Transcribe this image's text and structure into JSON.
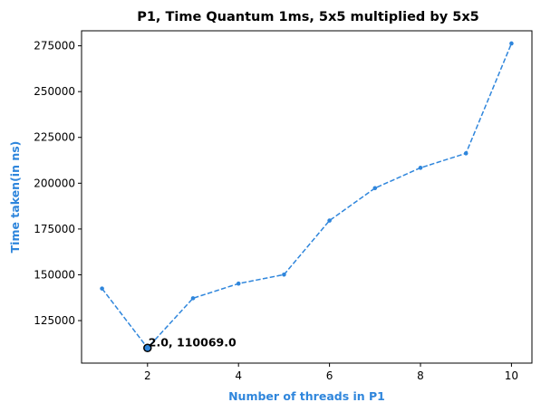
{
  "chart_data": {
    "type": "line",
    "title": "P1, Time Quantum 1ms, 5x5 multiplied by 5x5",
    "xlabel": "Number of threads in P1",
    "ylabel": "Time taken(in ns)",
    "x": [
      1,
      2,
      3,
      4,
      5,
      6,
      7,
      8,
      9,
      10
    ],
    "series": [
      {
        "values": [
          142500,
          110069,
          137200,
          145200,
          150100,
          179600,
          197300,
          208400,
          216300,
          276300
        ]
      }
    ],
    "xlim": [
      0.55,
      10.45
    ],
    "ylim": [
      101800,
      283200
    ],
    "xticks": [
      2,
      4,
      6,
      8,
      10
    ],
    "xtick_labels": [
      "2",
      "4",
      "6",
      "8",
      "10"
    ],
    "yticks": [
      125000,
      150000,
      175000,
      200000,
      225000,
      250000,
      275000
    ],
    "ytick_labels": [
      "125000",
      "150000",
      "175000",
      "200000",
      "225000",
      "250000",
      "275000"
    ],
    "line_style": "dashed",
    "grid": false,
    "highlight": {
      "x": 2,
      "y": 110069,
      "label": "2.0, 110069.0"
    },
    "colors": {
      "series": "#2f86dc",
      "axis_labels": "#2f86dc",
      "highlight_edge": "#000000"
    }
  }
}
